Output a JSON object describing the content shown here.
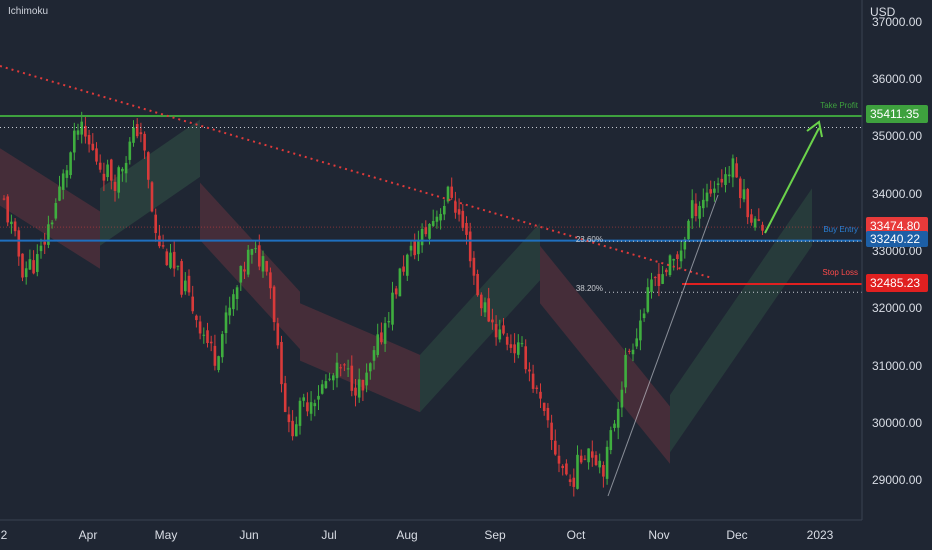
{
  "header": {
    "indicator": "Ichimoku",
    "currency": "USD"
  },
  "colors": {
    "background": "#1f2633",
    "up": "#3fae3f",
    "down": "#d83a3a",
    "take_profit": "#3ea13e",
    "buy_entry": "#1f6fbf",
    "stop_loss": "#e02020",
    "trendline": "#e03a3a"
  },
  "chart_data": {
    "type": "candlestick",
    "x_labels": [
      "2",
      "Apr",
      "May",
      "Jun",
      "Jul",
      "Aug",
      "Sep",
      "Oct",
      "Nov",
      "Dec",
      "2023"
    ],
    "y_ticks": [
      "37000.00",
      "36000.00",
      "35000.00",
      "34000.00",
      "33000.00",
      "32000.00",
      "31000.00",
      "30000.00",
      "29000.00"
    ],
    "ylim": [
      28400,
      37100
    ],
    "grid": false,
    "levels": {
      "take_profit": {
        "label": "Take Profit",
        "value": 35411.35,
        "tag": "35411.35"
      },
      "buy_entry": {
        "label": "Buy Entry",
        "value": 33240.22,
        "tag": "33240.22"
      },
      "stop_loss": {
        "label": "Stop Loss",
        "value": 32485.23,
        "tag": "32485.23"
      },
      "last_price": {
        "value": 33474.8,
        "tag": "33474.80"
      }
    },
    "fibonacci": [
      {
        "label": "23.60%",
        "value": 33230
      },
      {
        "label": "38.20%",
        "value": 32340
      }
    ],
    "key_points": [
      {
        "date": "2022-03-29",
        "high": 35370
      },
      {
        "date": "2022-04-21",
        "high": 35500
      },
      {
        "date": "2022-06-16",
        "low": 29650
      },
      {
        "date": "2022-08-16",
        "high": 34280
      },
      {
        "date": "2022-09-30",
        "low": 28700
      },
      {
        "date": "2022-10-13",
        "low": 28660
      },
      {
        "date": "2022-11-30",
        "high": 34590
      },
      {
        "date": "2022-12-09",
        "close": 33475
      }
    ]
  }
}
